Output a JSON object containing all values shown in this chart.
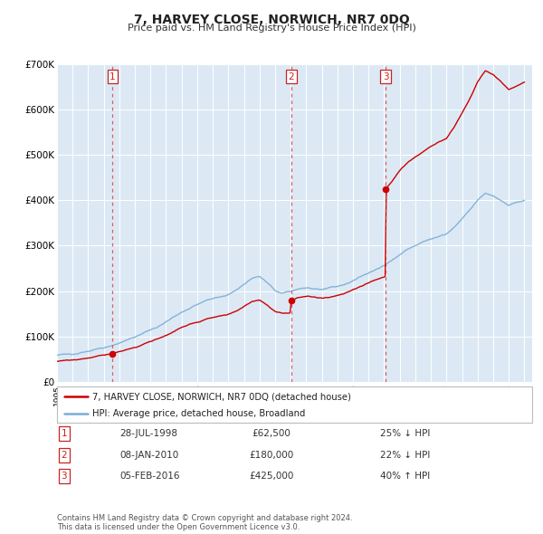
{
  "title": "7, HARVEY CLOSE, NORWICH, NR7 0DQ",
  "subtitle": "Price paid vs. HM Land Registry's House Price Index (HPI)",
  "legend_line1": "7, HARVEY CLOSE, NORWICH, NR7 0DQ (detached house)",
  "legend_line2": "HPI: Average price, detached house, Broadland",
  "sale_color": "#cc0000",
  "hpi_color": "#7aadd4",
  "background_color": "#dce9f5",
  "ylim": [
    0,
    700000
  ],
  "yticks": [
    0,
    100000,
    200000,
    300000,
    400000,
    500000,
    600000,
    700000
  ],
  "ytick_labels": [
    "£0",
    "£100K",
    "£200K",
    "£300K",
    "£400K",
    "£500K",
    "£600K",
    "£700K"
  ],
  "xmin": 1995.0,
  "xmax": 2025.5,
  "sales": [
    {
      "year": 1998.57,
      "price": 62500,
      "label": "1"
    },
    {
      "year": 2010.03,
      "price": 180000,
      "label": "2"
    },
    {
      "year": 2016.09,
      "price": 425000,
      "label": "3"
    }
  ],
  "vlines": [
    {
      "x": 1998.57,
      "label": "1"
    },
    {
      "x": 2010.03,
      "label": "2"
    },
    {
      "x": 2016.09,
      "label": "3"
    }
  ],
  "table_rows": [
    {
      "num": "1",
      "date": "28-JUL-1998",
      "price": "£62,500",
      "hpi": "25% ↓ HPI"
    },
    {
      "num": "2",
      "date": "08-JAN-2010",
      "price": "£180,000",
      "hpi": "22% ↓ HPI"
    },
    {
      "num": "3",
      "date": "05-FEB-2016",
      "price": "£425,000",
      "hpi": "40% ↑ HPI"
    }
  ],
  "footnote": "Contains HM Land Registry data © Crown copyright and database right 2024.\nThis data is licensed under the Open Government Licence v3.0.",
  "hpi_key": [
    [
      1995.0,
      58000
    ],
    [
      1995.5,
      60000
    ],
    [
      1996.0,
      62000
    ],
    [
      1996.5,
      65000
    ],
    [
      1997.0,
      68000
    ],
    [
      1997.5,
      72000
    ],
    [
      1998.0,
      76000
    ],
    [
      1998.5,
      80000
    ],
    [
      1999.0,
      86000
    ],
    [
      1999.5,
      92000
    ],
    [
      2000.0,
      99000
    ],
    [
      2000.5,
      106000
    ],
    [
      2001.0,
      114000
    ],
    [
      2001.5,
      122000
    ],
    [
      2002.0,
      132000
    ],
    [
      2002.5,
      143000
    ],
    [
      2003.0,
      154000
    ],
    [
      2003.5,
      162000
    ],
    [
      2004.0,
      170000
    ],
    [
      2004.5,
      178000
    ],
    [
      2005.0,
      183000
    ],
    [
      2005.5,
      187000
    ],
    [
      2006.0,
      193000
    ],
    [
      2006.5,
      202000
    ],
    [
      2007.0,
      215000
    ],
    [
      2007.5,
      228000
    ],
    [
      2008.0,
      232000
    ],
    [
      2008.5,
      218000
    ],
    [
      2009.0,
      200000
    ],
    [
      2009.5,
      195000
    ],
    [
      2010.0,
      198000
    ],
    [
      2010.5,
      205000
    ],
    [
      2011.0,
      208000
    ],
    [
      2011.5,
      205000
    ],
    [
      2012.0,
      203000
    ],
    [
      2012.5,
      205000
    ],
    [
      2013.0,
      210000
    ],
    [
      2013.5,
      215000
    ],
    [
      2014.0,
      223000
    ],
    [
      2014.5,
      232000
    ],
    [
      2015.0,
      240000
    ],
    [
      2015.5,
      248000
    ],
    [
      2016.0,
      255000
    ],
    [
      2016.5,
      268000
    ],
    [
      2017.0,
      282000
    ],
    [
      2017.5,
      292000
    ],
    [
      2018.0,
      300000
    ],
    [
      2018.5,
      308000
    ],
    [
      2019.0,
      315000
    ],
    [
      2019.5,
      320000
    ],
    [
      2020.0,
      325000
    ],
    [
      2020.5,
      340000
    ],
    [
      2021.0,
      358000
    ],
    [
      2021.5,
      378000
    ],
    [
      2022.0,
      400000
    ],
    [
      2022.5,
      415000
    ],
    [
      2023.0,
      410000
    ],
    [
      2023.5,
      400000
    ],
    [
      2024.0,
      390000
    ],
    [
      2024.5,
      395000
    ],
    [
      2025.0,
      400000
    ]
  ]
}
